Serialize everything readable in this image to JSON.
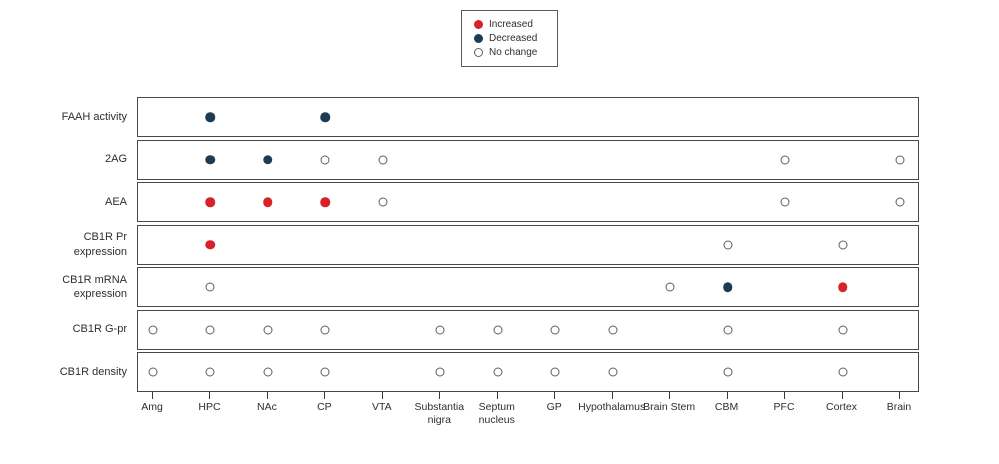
{
  "colors": {
    "increased": "#d8222a",
    "decreased": "#1d3c53",
    "no_change_stroke": "#5f5f5f",
    "box_border": "#484848",
    "text": "#2e2e2e"
  },
  "legend": {
    "items": [
      {
        "label": "Increased",
        "state": "increased"
      },
      {
        "label": "Decreased",
        "state": "decreased"
      },
      {
        "label": "No change",
        "state": "no_change"
      }
    ]
  },
  "chart_data": {
    "type": "heatmap",
    "title": "",
    "xlabel": "",
    "ylabel": "",
    "legend_position": "top-center",
    "grid": false,
    "value_states": [
      "increased",
      "decreased",
      "no_change"
    ],
    "x_categories": [
      "Amg",
      "HPC",
      "NAc",
      "CP",
      "VTA",
      "Substantia\nnigra",
      "Septum\nnucleus",
      "GP",
      "Hypothalamus",
      "Brain Stem",
      "CBM",
      "PFC",
      "Cortex",
      "Brain"
    ],
    "y_categories": [
      "FAAH activity",
      "2AG",
      "AEA",
      "CB1R Pr\nexpression",
      "CB1R mRNA\nexpression",
      "CB1R G-pr",
      "CB1R density"
    ],
    "values": [
      [
        null,
        "decreased",
        null,
        "decreased",
        null,
        null,
        null,
        null,
        null,
        null,
        null,
        null,
        null,
        null
      ],
      [
        null,
        "decreased",
        "decreased",
        "no_change",
        "no_change",
        null,
        null,
        null,
        null,
        null,
        null,
        "no_change",
        null,
        "no_change"
      ],
      [
        null,
        "increased",
        "increased",
        "increased",
        "no_change",
        null,
        null,
        null,
        null,
        null,
        null,
        "no_change",
        null,
        "no_change"
      ],
      [
        null,
        "increased",
        null,
        null,
        null,
        null,
        null,
        null,
        null,
        null,
        "no_change",
        null,
        "no_change",
        null
      ],
      [
        null,
        "no_change",
        null,
        null,
        null,
        null,
        null,
        null,
        null,
        "no_change",
        "decreased",
        null,
        "increased",
        null
      ],
      [
        "no_change",
        "no_change",
        "no_change",
        "no_change",
        null,
        "no_change",
        "no_change",
        "no_change",
        "no_change",
        null,
        "no_change",
        null,
        "no_change",
        null
      ],
      [
        "no_change",
        "no_change",
        "no_change",
        "no_change",
        null,
        "no_change",
        "no_change",
        "no_change",
        "no_change",
        null,
        "no_change",
        null,
        "no_change",
        null
      ]
    ]
  }
}
